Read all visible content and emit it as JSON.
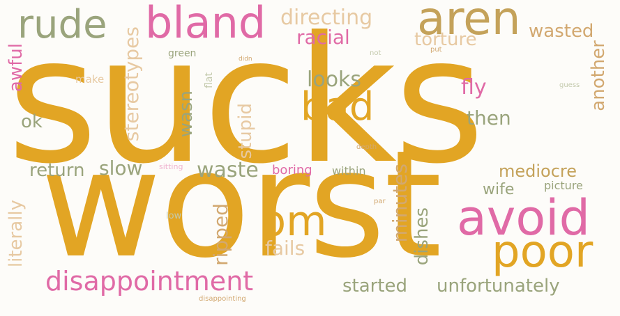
{
  "colors": {
    "background": "#fdfcf9",
    "gold": "#e2a524",
    "pink": "#e06aa6",
    "sage": "#9aa47c",
    "tan": "#d2a870",
    "light_tan": "#e7c9a2",
    "light_sage": "#c3c9ac",
    "light_pink": "#efb2cf"
  },
  "words": {
    "sucks": "sucks",
    "worst": "worst",
    "bland": "bland",
    "aren": "aren",
    "rude": "rude",
    "bad": "bad",
    "avoid": "avoid",
    "poor": "poor",
    "pm": "pm",
    "disappointment": "disappointment",
    "directing": "directing",
    "racial": "racial",
    "wasted": "wasted",
    "torture": "torture",
    "stereotypes": "stereotypes",
    "awful": "awful",
    "green": "green",
    "didn": "didn",
    "not": "not",
    "put": "put",
    "make": "make",
    "flat": "flat",
    "looks": "looks",
    "fly": "fly",
    "another": "another",
    "guess": "guess",
    "wasn": "wasn",
    "stupid": "stupid",
    "then": "then",
    "ok": "ok",
    "depth": "depth",
    "return": "return",
    "slow": "slow",
    "sitting": "sitting",
    "waste": "waste",
    "boring": "boring",
    "within": "within",
    "minutes": "minutes",
    "mediocre": "mediocre",
    "wife": "wife",
    "picture": "picture",
    "literally": "literally",
    "low": "low",
    "ripped": "ripped",
    "par": "par",
    "dishes": "dishes",
    "fails": "fails",
    "started": "started",
    "unfortunately": "unfortunately",
    "disappointing": "disappointing"
  }
}
